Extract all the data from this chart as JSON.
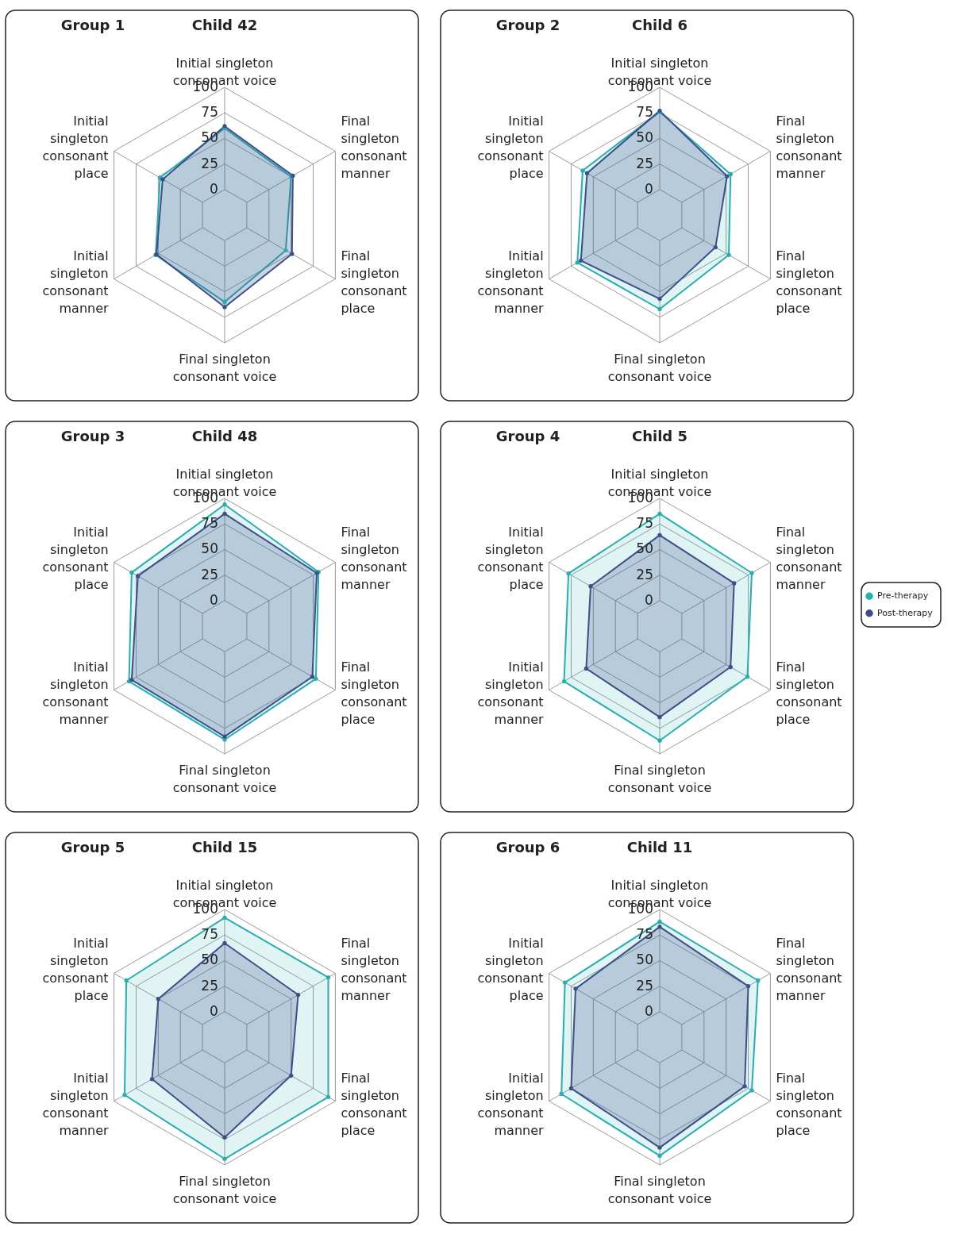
{
  "chart_data": [
    {
      "type": "radar",
      "title": "Group 1",
      "subtitle": "Child 42",
      "categories": [
        "Initial singleton consonant voice",
        "Final singleton consonant manner",
        "Final singleton consonant place",
        "Final singleton consonant voice",
        "Initial singleton consonant manner",
        "Initial singleton consonant place"
      ],
      "ylim": [
        -25,
        100
      ],
      "yticks": [
        0,
        25,
        50,
        75,
        100
      ],
      "grid": true,
      "marker": "circle",
      "legend": "right",
      "series": [
        {
          "name": "Pre-therapy",
          "color": "#26aeb0",
          "values": [
            60,
            50,
            44,
            60,
            53,
            48
          ]
        },
        {
          "name": "Post-therapy",
          "color": "#3d4f8a",
          "values": [
            62,
            52,
            51,
            65,
            52,
            45
          ]
        }
      ]
    },
    {
      "type": "radar",
      "title": "Group 2",
      "subtitle": "Child 6",
      "categories": [
        "Initial singleton consonant voice",
        "Final singleton consonant manner",
        "Final singleton consonant place",
        "Final singleton consonant voice",
        "Initial singleton consonant manner",
        "Initial singleton consonant place"
      ],
      "ylim": [
        -25,
        100
      ],
      "yticks": [
        0,
        25,
        50,
        75,
        100
      ],
      "grid": true,
      "marker": "circle",
      "legend": "right",
      "series": [
        {
          "name": "Pre-therapy",
          "color": "#26aeb0",
          "values": [
            76,
            55,
            53,
            67,
            68,
            62
          ]
        },
        {
          "name": "Post-therapy",
          "color": "#3d4f8a",
          "values": [
            77,
            51,
            38,
            57,
            64,
            57
          ]
        }
      ]
    },
    {
      "type": "radar",
      "title": "Group 3",
      "subtitle": "Child 48",
      "categories": [
        "Initial singleton consonant voice",
        "Final singleton consonant manner",
        "Final singleton consonant place",
        "Final singleton consonant voice",
        "Initial singleton consonant manner",
        "Initial singleton consonant place"
      ],
      "ylim": [
        -25,
        100
      ],
      "yticks": [
        0,
        25,
        50,
        75,
        100
      ],
      "grid": true,
      "marker": "circle",
      "legend": "right",
      "series": [
        {
          "name": "Pre-therapy",
          "color": "#26aeb0",
          "values": [
            94,
            81,
            78,
            86,
            83,
            80
          ]
        },
        {
          "name": "Post-therapy",
          "color": "#3d4f8a",
          "values": [
            85,
            79,
            74,
            83,
            80,
            73
          ]
        }
      ]
    },
    {
      "type": "radar",
      "title": "Group 4",
      "subtitle": "Child 5",
      "categories": [
        "Initial singleton consonant voice",
        "Final singleton consonant manner",
        "Final singleton consonant place",
        "Final singleton consonant voice",
        "Initial singleton consonant manner",
        "Initial singleton consonant place"
      ],
      "ylim": [
        -25,
        100
      ],
      "yticks": [
        0,
        25,
        50,
        75,
        100
      ],
      "grid": true,
      "marker": "circle",
      "legend": "right",
      "series": [
        {
          "name": "Pre-therapy",
          "color": "#26aeb0",
          "values": [
            85,
            79,
            74,
            87,
            83,
            78
          ]
        },
        {
          "name": "Post-therapy",
          "color": "#3d4f8a",
          "values": [
            64,
            59,
            55,
            64,
            58,
            53
          ]
        }
      ]
    },
    {
      "type": "radar",
      "title": "Group 5",
      "subtitle": "Child 15",
      "categories": [
        "Initial singleton consonant voice",
        "Final singleton consonant manner",
        "Final singleton consonant place",
        "Final singleton consonant voice",
        "Initial singleton consonant manner",
        "Initial singleton consonant place"
      ],
      "ylim": [
        -25,
        100
      ],
      "yticks": [
        0,
        25,
        50,
        75,
        100
      ],
      "grid": true,
      "marker": "circle",
      "legend": "right",
      "series": [
        {
          "name": "Pre-therapy",
          "color": "#26aeb0",
          "values": [
            92,
            92,
            92,
            94,
            88,
            86
          ]
        },
        {
          "name": "Post-therapy",
          "color": "#3d4f8a",
          "values": [
            67,
            58,
            50,
            73,
            57,
            50
          ]
        }
      ]
    },
    {
      "type": "radar",
      "title": "Group 6",
      "subtitle": "Child 11",
      "categories": [
        "Initial singleton consonant voice",
        "Final singleton consonant manner",
        "Final singleton consonant place",
        "Final singleton consonant voice",
        "Initial singleton consonant manner",
        "Initial singleton consonant place"
      ],
      "ylim": [
        -25,
        100
      ],
      "yticks": [
        0,
        25,
        50,
        75,
        100
      ],
      "grid": true,
      "marker": "circle",
      "legend": "right",
      "series": [
        {
          "name": "Pre-therapy",
          "color": "#26aeb0",
          "values": [
            88,
            86,
            79,
            91,
            86,
            82
          ]
        },
        {
          "name": "Post-therapy",
          "color": "#3d4f8a",
          "values": [
            83,
            75,
            71,
            83,
            75,
            70
          ]
        }
      ]
    }
  ]
}
